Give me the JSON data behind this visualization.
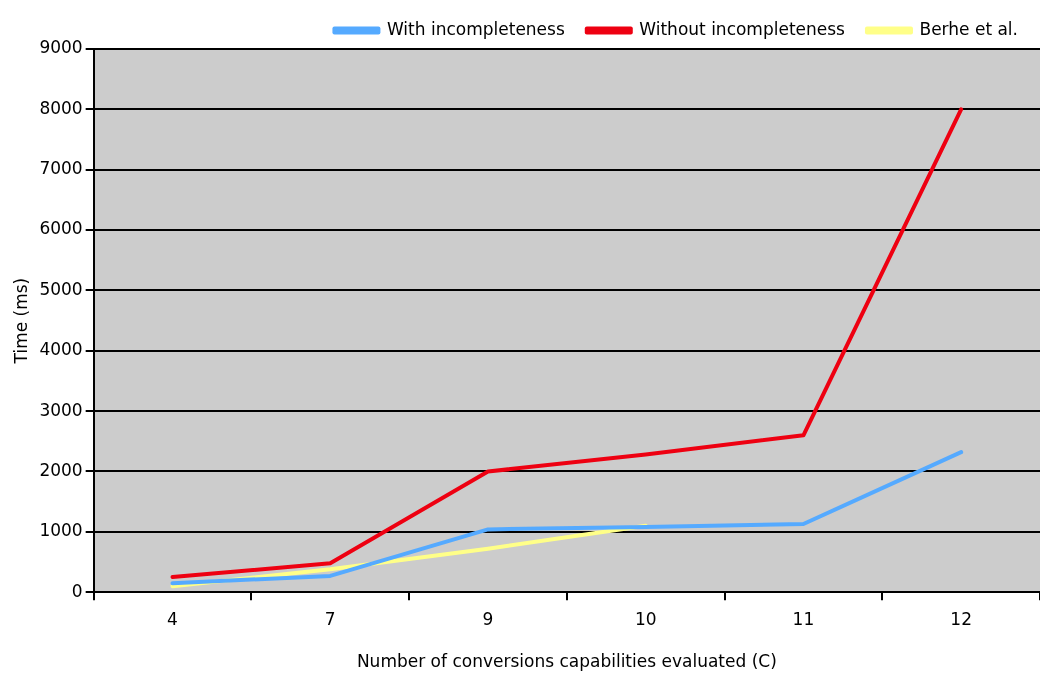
{
  "chart_data": {
    "type": "line",
    "xlabel": "Number of conversions capabilities evaluated (C)",
    "ylabel": "Time (ms)",
    "categories": [
      "4",
      "7",
      "9",
      "10",
      "11",
      "12"
    ],
    "series": [
      {
        "name": "With incompleteness",
        "color": "#55aaff",
        "values": [
          150,
          270,
          1040,
          1080,
          1130,
          2320
        ]
      },
      {
        "name": "Without incompleteness",
        "color": "#ee0011",
        "values": [
          250,
          480,
          2000,
          2280,
          2600,
          8000
        ]
      },
      {
        "name": "Berhe et al.",
        "color": "#ffff88",
        "values": [
          100,
          380,
          720,
          1100,
          null,
          null
        ]
      }
    ],
    "ylim": [
      0,
      9000
    ],
    "yticks": [
      0,
      1000,
      2000,
      3000,
      4000,
      5000,
      6000,
      7000,
      8000,
      9000
    ],
    "grid": "y",
    "legend": "top",
    "marker": "none",
    "line_style": "solid"
  }
}
